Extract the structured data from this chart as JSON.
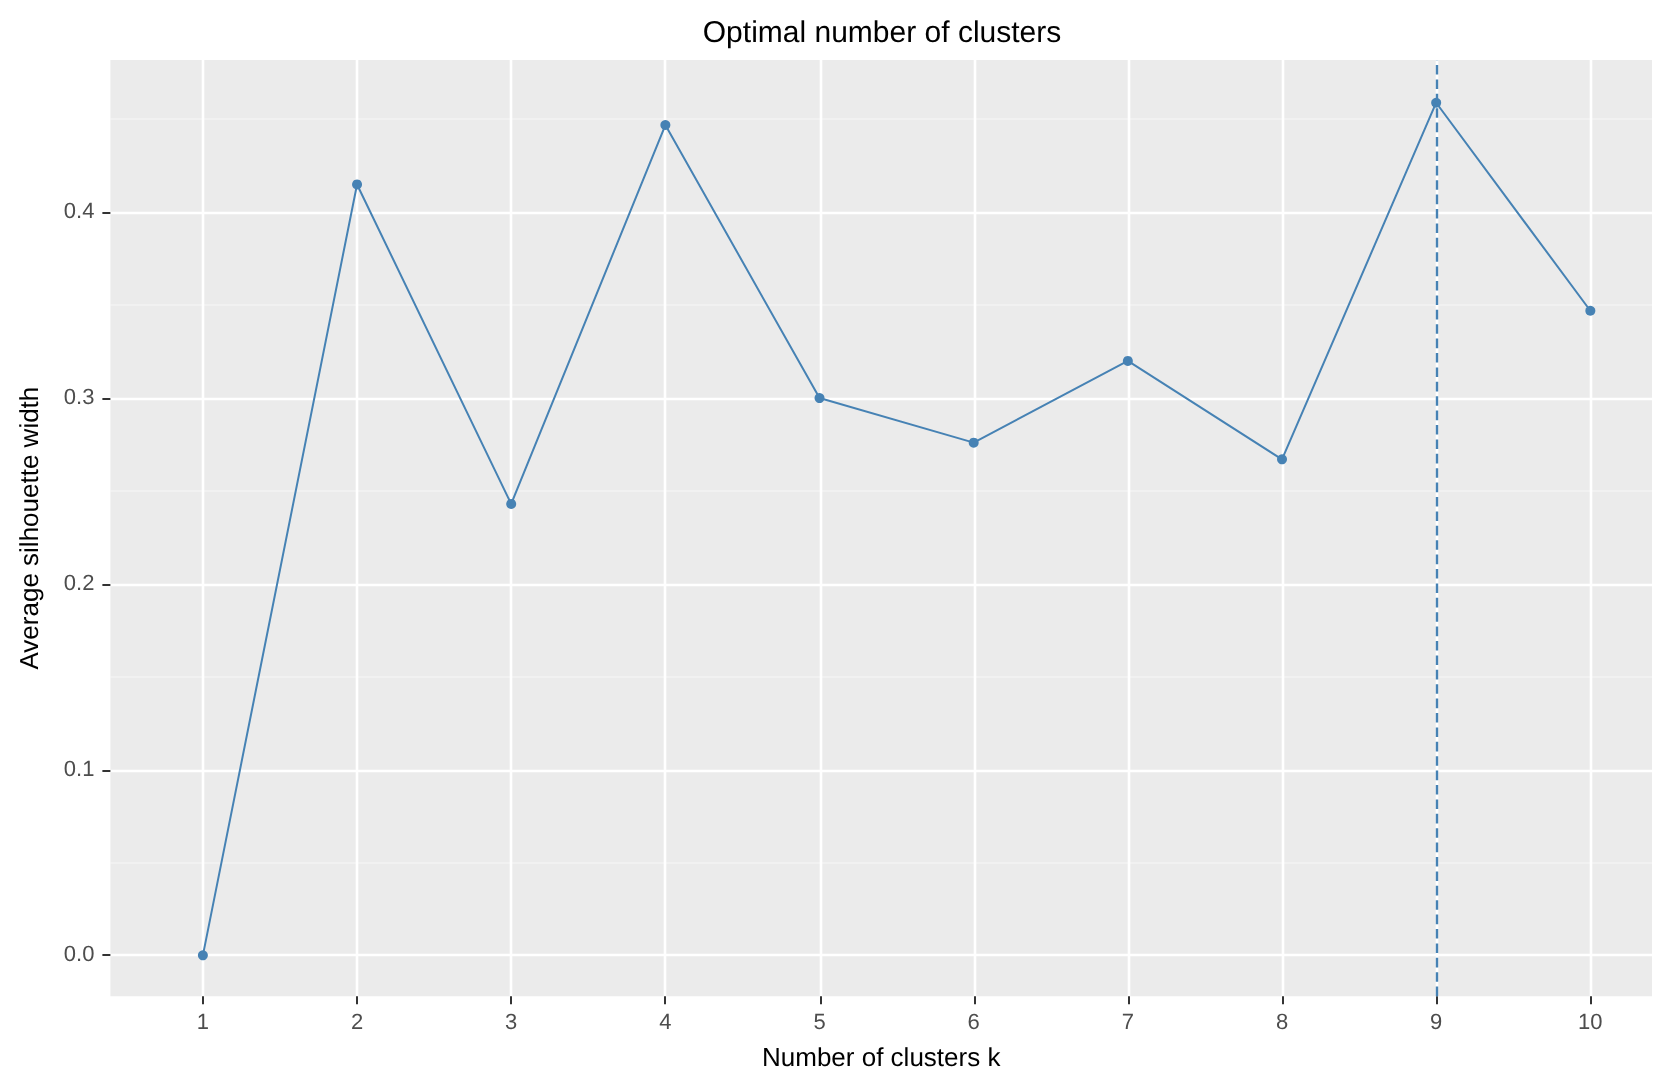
{
  "chart_data": {
    "type": "line",
    "title": "Optimal number of clusters",
    "xlabel": "Number of clusters k",
    "ylabel": "Average silhouette width",
    "x": [
      1,
      2,
      3,
      4,
      5,
      6,
      7,
      8,
      9,
      10
    ],
    "series": [
      {
        "color": "#4682b4",
        "values": [
          0.0,
          0.415,
          0.243,
          0.447,
          0.3,
          0.276,
          0.32,
          0.267,
          0.459,
          0.347
        ]
      }
    ],
    "xlim": [
      0.4,
      10.4
    ],
    "xticks": [
      1,
      2,
      3,
      4,
      5,
      6,
      7,
      8,
      9,
      10
    ],
    "ylim": [
      -0.022,
      0.482
    ],
    "yticks": [
      {
        "value": 0,
        "label": "0.0"
      },
      0.1,
      0.2,
      0.3,
      0.4
    ],
    "ref_lines": [
      {
        "axis": "x",
        "value": 9,
        "color": "#4682b4",
        "line_style": "dashed"
      }
    ],
    "grid": true,
    "marker": "circle",
    "line_style": "solid"
  }
}
